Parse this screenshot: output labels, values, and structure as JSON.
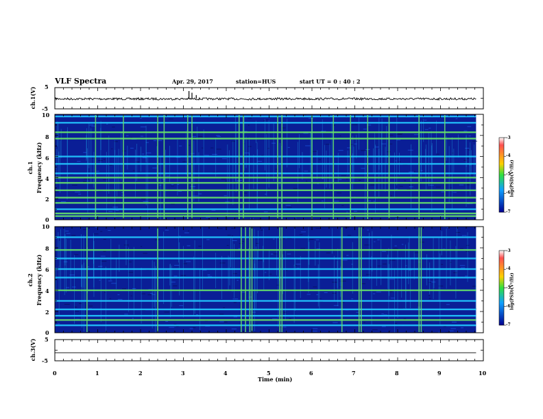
{
  "header": {
    "title": "VLF Spectra",
    "date": "Apr. 29, 2017",
    "station": "station=HUS",
    "start": "start  UT  =   0 : 40 : 2"
  },
  "axes": {
    "ch1_v_label": "ch.1(V)",
    "ch1_freq_label": "ch.1",
    "ch1_freq_unit": "Frequency (kHz)",
    "ch2_freq_label": "ch.2",
    "ch2_freq_unit": "Frequency (kHz)",
    "ch3_v_label": "ch.3(V)",
    "xlabel": "Time  (min)",
    "colorbar_label": "log(PSD)(V²/Hz)"
  },
  "colors": {
    "background": "#0a1e96",
    "band_cyan": "#22c8ff",
    "band_green": "#66e36a",
    "trace": "#000000"
  },
  "chart_data": [
    {
      "type": "line",
      "name": "ch1-voltage",
      "ylabel": "ch.1(V)",
      "ylim": [
        -5,
        5
      ],
      "yticks": [
        "5",
        "-5"
      ],
      "xlim": [
        0,
        10
      ],
      "baseline": -0.3,
      "spikes": [
        {
          "x": 3.13,
          "y": 3.4
        },
        {
          "x": 3.2,
          "y": 2.6
        },
        {
          "x": 3.3,
          "y": 1.5
        }
      ]
    },
    {
      "type": "heatmap",
      "name": "ch1-spectrogram",
      "xlim": [
        0,
        10
      ],
      "ylim": [
        0,
        10
      ],
      "yticks": [
        "0",
        "2",
        "4",
        "6",
        "8",
        "10"
      ],
      "data_end_x": 9.83,
      "bands": [
        {
          "f": 0.35,
          "c": "green"
        },
        {
          "f": 0.6,
          "c": "green"
        },
        {
          "f": 1.0,
          "c": "cyan"
        },
        {
          "f": 1.6,
          "c": "green"
        },
        {
          "f": 2.1,
          "c": "green"
        },
        {
          "f": 2.8,
          "c": "green"
        },
        {
          "f": 3.5,
          "c": "green"
        },
        {
          "f": 4.0,
          "c": "green"
        },
        {
          "f": 4.4,
          "c": "cyan"
        },
        {
          "f": 5.3,
          "c": "cyan"
        },
        {
          "f": 6.0,
          "c": "cyan"
        },
        {
          "f": 7.7,
          "c": "green"
        },
        {
          "f": 8.3,
          "c": "green"
        },
        {
          "f": 9.2,
          "c": "cyan"
        },
        {
          "f": 9.8,
          "c": "cyan"
        }
      ],
      "sferics": [
        0.95,
        1.6,
        2.4,
        2.55,
        3.1,
        3.2,
        4.3,
        4.4,
        5.2,
        5.3,
        6.0,
        6.5,
        6.9,
        7.3,
        7.8,
        8.5,
        9.1
      ]
    },
    {
      "type": "heatmap",
      "name": "ch2-spectrogram",
      "xlim": [
        0,
        10
      ],
      "ylim": [
        0,
        10
      ],
      "yticks": [
        "0",
        "2",
        "4",
        "6",
        "8",
        "10"
      ],
      "data_end_x": 9.83,
      "bands": [
        {
          "f": 0.7,
          "c": "cyan"
        },
        {
          "f": 1.2,
          "c": "green"
        },
        {
          "f": 1.6,
          "c": "cyan"
        },
        {
          "f": 2.2,
          "c": "cyan"
        },
        {
          "f": 3.0,
          "c": "cyan"
        },
        {
          "f": 4.0,
          "c": "green"
        },
        {
          "f": 5.2,
          "c": "cyan"
        },
        {
          "f": 6.0,
          "c": "cyan"
        },
        {
          "f": 7.0,
          "c": "cyan"
        },
        {
          "f": 7.8,
          "c": "green"
        },
        {
          "f": 9.0,
          "c": "cyan"
        }
      ],
      "sferics": [
        0.75,
        2.4,
        4.35,
        4.45,
        4.55,
        4.6,
        5.25,
        5.3,
        6.7,
        7.1,
        7.15,
        8.5,
        8.55
      ]
    },
    {
      "type": "line",
      "name": "ch3-voltage",
      "ylabel": "ch.3(V)",
      "ylim": [
        -5,
        5
      ],
      "yticks": [
        "5",
        "-5"
      ],
      "xlim": [
        0,
        10
      ],
      "baseline": -1.2
    },
    {
      "type": "heatmap-colorbar",
      "name": "colorbars",
      "range": [
        -7,
        -3
      ],
      "ticks": [
        "-3",
        "-4",
        "-5",
        "-6",
        "-7"
      ],
      "label": "log(PSD)(V²/Hz)"
    }
  ],
  "xticks": [
    "0",
    "1",
    "2",
    "3",
    "4",
    "5",
    "6",
    "7",
    "8",
    "9",
    "10"
  ]
}
